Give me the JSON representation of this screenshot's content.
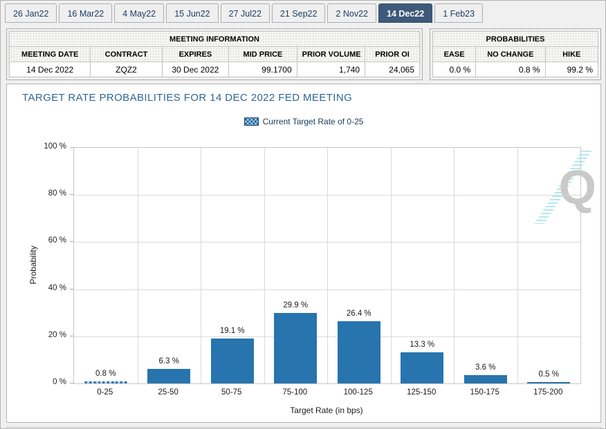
{
  "tabs": {
    "items": [
      "26 Jan22",
      "16 Mar22",
      "4 May22",
      "15 Jun22",
      "27 Jul22",
      "21 Sep22",
      "2 Nov22",
      "14 Dec22",
      "1 Feb23"
    ],
    "selected_index": 7
  },
  "meeting_information": {
    "title": "MEETING INFORMATION",
    "columns": [
      "MEETING DATE",
      "CONTRACT",
      "EXPIRES",
      "MID PRICE",
      "PRIOR VOLUME",
      "PRIOR OI"
    ],
    "values": [
      "14 Dec 2022",
      "ZQZ2",
      "30 Dec 2022",
      "99.1700",
      "1,740",
      "24,065"
    ]
  },
  "probabilities": {
    "title": "PROBABILITIES",
    "columns": [
      "EASE",
      "NO CHANGE",
      "HIKE"
    ],
    "values": [
      "0.0 %",
      "0.8 %",
      "99.2 %"
    ]
  },
  "chart_data": {
    "type": "bar",
    "title": "TARGET RATE PROBABILITIES FOR 14 DEC 2022 FED MEETING",
    "legend": [
      {
        "label": "Current Target Rate of 0-25",
        "pattern": "crosshatch"
      }
    ],
    "legend_position": "top-center",
    "categories": [
      "0-25",
      "25-50",
      "50-75",
      "75-100",
      "100-125",
      "125-150",
      "150-175",
      "175-200"
    ],
    "values": [
      0.8,
      6.3,
      19.1,
      29.9,
      26.4,
      13.3,
      3.6,
      0.5
    ],
    "value_labels": [
      "0.8 %",
      "6.3 %",
      "19.1 %",
      "29.9 %",
      "26.4 %",
      "13.3 %",
      "3.6 %",
      "0.5 %"
    ],
    "hatched_category": "0-25",
    "xlabel": "Target Rate (in bps)",
    "ylabel": "Probability",
    "ylim": [
      0,
      100
    ],
    "yticks": [
      "0 %",
      "20 %",
      "40 %",
      "60 %",
      "80 %",
      "100 %"
    ],
    "bar_color": "#2874ae",
    "grid": true
  },
  "watermark": {
    "letter": "Q"
  },
  "colors": {
    "bar": "#2874ae",
    "selected_tab": "#3d5a7a",
    "chart_title": "#2e6593",
    "legend_swatch": "#1e5c94",
    "watermark_q": "#c9c9c9",
    "watermark_dashes": "#b4e7ef"
  }
}
